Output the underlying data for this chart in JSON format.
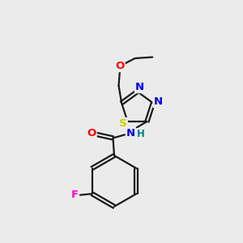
{
  "bg_color": "#ebebeb",
  "bond_color": "#1a1a1a",
  "atom_colors": {
    "O": "#ff0000",
    "S": "#cccc00",
    "N": "#0000ee",
    "F": "#ff00cc",
    "H": "#008080"
  },
  "lw": 1.6,
  "fs": 9.5
}
